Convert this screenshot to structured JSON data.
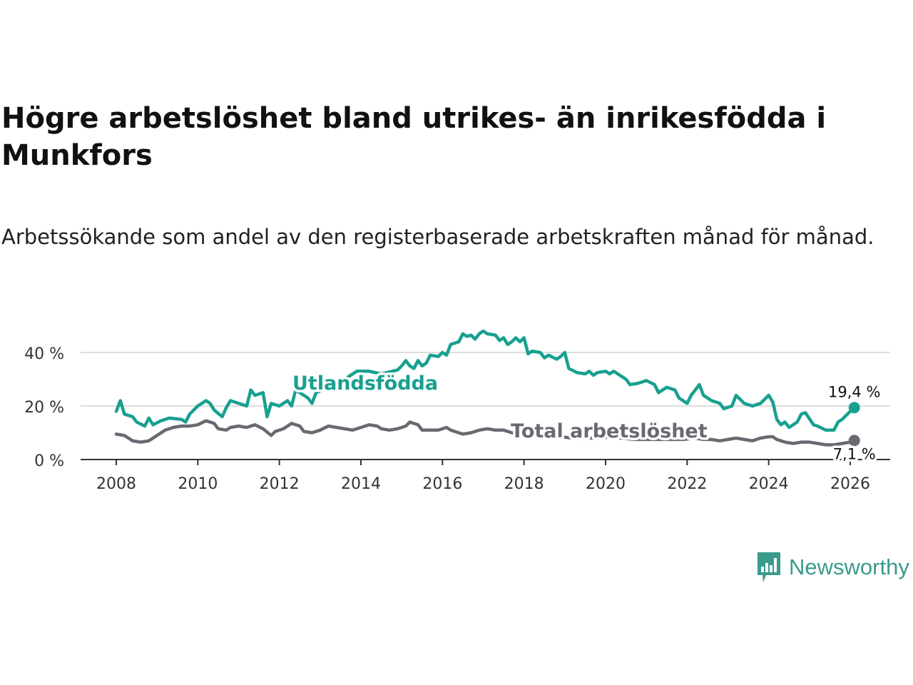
{
  "header": {
    "title": "Högre arbetslöshet bland utrikes- än inrikesfödda i Munkfors",
    "subtitle": "Arbetssökande som andel av den registerbaserade arbetskraften månad för månad."
  },
  "brand": {
    "name": "Newsworthy",
    "color": "#3a9a8c"
  },
  "chart_data": {
    "type": "line",
    "title": "Högre arbetslöshet bland utrikes- än inrikesfödda i Munkfors",
    "xlabel": "",
    "ylabel": "",
    "xlim": [
      2007.7,
      2026.8
    ],
    "ylim": [
      0,
      50
    ],
    "x_ticks": [
      2008,
      2010,
      2012,
      2014,
      2016,
      2018,
      2020,
      2022,
      2024,
      2026
    ],
    "x_tick_labels": [
      "2008",
      "2010",
      "2012",
      "2014",
      "2016",
      "2018",
      "2020",
      "2022",
      "2024",
      "2026"
    ],
    "y_ticks": [
      0,
      20,
      40
    ],
    "y_tick_labels": [
      "0 %",
      "20 %",
      "40 %"
    ],
    "grid": true,
    "series": [
      {
        "name": "Utlandsfödda",
        "color": "#18a08f",
        "label": "Utlandsfödda",
        "end_label": "19,4 %",
        "points": [
          [
            2008.0,
            18.0
          ],
          [
            2008.1,
            22.0
          ],
          [
            2008.2,
            17.0
          ],
          [
            2008.4,
            16.0
          ],
          [
            2008.5,
            14.0
          ],
          [
            2008.7,
            12.5
          ],
          [
            2008.8,
            15.5
          ],
          [
            2008.9,
            13.0
          ],
          [
            2009.1,
            14.5
          ],
          [
            2009.3,
            15.5
          ],
          [
            2009.6,
            15.0
          ],
          [
            2009.7,
            14.0
          ],
          [
            2009.8,
            17.0
          ],
          [
            2010.0,
            20.0
          ],
          [
            2010.2,
            22.0
          ],
          [
            2010.3,
            21.0
          ],
          [
            2010.4,
            18.5
          ],
          [
            2010.6,
            16.0
          ],
          [
            2010.7,
            19.5
          ],
          [
            2010.8,
            22.0
          ],
          [
            2011.0,
            21.0
          ],
          [
            2011.2,
            20.0
          ],
          [
            2011.3,
            26.0
          ],
          [
            2011.4,
            24.0
          ],
          [
            2011.6,
            25.0
          ],
          [
            2011.7,
            16.0
          ],
          [
            2011.8,
            21.0
          ],
          [
            2012.0,
            20.0
          ],
          [
            2012.2,
            22.0
          ],
          [
            2012.3,
            20.0
          ],
          [
            2012.4,
            26.0
          ],
          [
            2012.6,
            24.0
          ],
          [
            2012.7,
            23.0
          ],
          [
            2012.8,
            21.0
          ],
          [
            2012.9,
            25.0
          ],
          [
            2013.2,
            27.0
          ],
          [
            2013.4,
            28.0
          ],
          [
            2013.6,
            30.0
          ],
          [
            2013.9,
            33.0
          ],
          [
            2014.2,
            33.0
          ],
          [
            2014.5,
            32.0
          ],
          [
            2014.9,
            33.5
          ],
          [
            2015.0,
            35.0
          ],
          [
            2015.1,
            37.0
          ],
          [
            2015.2,
            35.0
          ],
          [
            2015.3,
            34.0
          ],
          [
            2015.4,
            37.0
          ],
          [
            2015.5,
            35.0
          ],
          [
            2015.6,
            36.0
          ],
          [
            2015.7,
            39.0
          ],
          [
            2015.9,
            38.5
          ],
          [
            2016.0,
            40.0
          ],
          [
            2016.1,
            39.0
          ],
          [
            2016.2,
            43.0
          ],
          [
            2016.4,
            44.0
          ],
          [
            2016.5,
            47.0
          ],
          [
            2016.6,
            46.0
          ],
          [
            2016.7,
            46.5
          ],
          [
            2016.8,
            45.0
          ],
          [
            2016.9,
            47.0
          ],
          [
            2017.0,
            48.0
          ],
          [
            2017.1,
            47.0
          ],
          [
            2017.3,
            46.5
          ],
          [
            2017.4,
            44.5
          ],
          [
            2017.5,
            45.5
          ],
          [
            2017.6,
            43.0
          ],
          [
            2017.7,
            44.0
          ],
          [
            2017.8,
            45.5
          ],
          [
            2017.9,
            44.0
          ],
          [
            2018.0,
            45.5
          ],
          [
            2018.1,
            39.5
          ],
          [
            2018.2,
            40.5
          ],
          [
            2018.4,
            40.0
          ],
          [
            2018.5,
            38.0
          ],
          [
            2018.6,
            39.0
          ],
          [
            2018.8,
            37.5
          ],
          [
            2018.9,
            38.5
          ],
          [
            2019.0,
            40.0
          ],
          [
            2019.1,
            34.0
          ],
          [
            2019.3,
            32.5
          ],
          [
            2019.5,
            32.0
          ],
          [
            2019.6,
            33.0
          ],
          [
            2019.7,
            31.5
          ],
          [
            2019.8,
            32.5
          ],
          [
            2020.0,
            33.0
          ],
          [
            2020.1,
            32.0
          ],
          [
            2020.2,
            33.0
          ],
          [
            2020.3,
            32.0
          ],
          [
            2020.5,
            30.0
          ],
          [
            2020.6,
            28.0
          ],
          [
            2020.8,
            28.5
          ],
          [
            2021.0,
            29.5
          ],
          [
            2021.2,
            28.0
          ],
          [
            2021.3,
            25.0
          ],
          [
            2021.5,
            27.0
          ],
          [
            2021.7,
            26.0
          ],
          [
            2021.8,
            23.0
          ],
          [
            2022.0,
            21.0
          ],
          [
            2022.1,
            24.0
          ],
          [
            2022.3,
            28.0
          ],
          [
            2022.4,
            24.0
          ],
          [
            2022.6,
            22.0
          ],
          [
            2022.8,
            21.0
          ],
          [
            2022.9,
            19.0
          ],
          [
            2023.1,
            20.0
          ],
          [
            2023.2,
            24.0
          ],
          [
            2023.4,
            21.0
          ],
          [
            2023.6,
            20.0
          ],
          [
            2023.8,
            21.0
          ],
          [
            2024.0,
            24.0
          ],
          [
            2024.1,
            21.5
          ],
          [
            2024.2,
            15.0
          ],
          [
            2024.3,
            13.0
          ],
          [
            2024.4,
            14.0
          ],
          [
            2024.5,
            12.0
          ],
          [
            2024.7,
            14.0
          ],
          [
            2024.8,
            17.0
          ],
          [
            2024.9,
            17.5
          ],
          [
            2025.1,
            13.0
          ],
          [
            2025.2,
            12.5
          ],
          [
            2025.4,
            11.0
          ],
          [
            2025.6,
            11.0
          ],
          [
            2025.7,
            14.0
          ],
          [
            2025.8,
            15.0
          ],
          [
            2025.9,
            16.5
          ],
          [
            2026.0,
            18.0
          ],
          [
            2026.1,
            19.4
          ]
        ]
      },
      {
        "name": "Total arbetslöshet",
        "color": "#6b6871",
        "label": "Total arbetslöshet",
        "end_label": "7,1 %",
        "points": [
          [
            2008.0,
            9.5
          ],
          [
            2008.2,
            9.0
          ],
          [
            2008.3,
            8.0
          ],
          [
            2008.4,
            7.0
          ],
          [
            2008.6,
            6.5
          ],
          [
            2008.8,
            7.0
          ],
          [
            2008.9,
            8.0
          ],
          [
            2009.0,
            9.0
          ],
          [
            2009.2,
            11.0
          ],
          [
            2009.4,
            12.0
          ],
          [
            2009.6,
            12.5
          ],
          [
            2009.8,
            12.5
          ],
          [
            2010.0,
            13.0
          ],
          [
            2010.2,
            14.5
          ],
          [
            2010.4,
            13.5
          ],
          [
            2010.5,
            11.5
          ],
          [
            2010.7,
            11.0
          ],
          [
            2010.8,
            12.0
          ],
          [
            2011.0,
            12.5
          ],
          [
            2011.2,
            12.0
          ],
          [
            2011.4,
            13.0
          ],
          [
            2011.6,
            11.5
          ],
          [
            2011.8,
            9.0
          ],
          [
            2011.9,
            10.5
          ],
          [
            2012.1,
            11.5
          ],
          [
            2012.3,
            13.5
          ],
          [
            2012.5,
            12.5
          ],
          [
            2012.6,
            10.5
          ],
          [
            2012.8,
            10.0
          ],
          [
            2013.0,
            11.0
          ],
          [
            2013.2,
            12.5
          ],
          [
            2013.4,
            12.0
          ],
          [
            2013.6,
            11.5
          ],
          [
            2013.8,
            11.0
          ],
          [
            2014.0,
            12.0
          ],
          [
            2014.2,
            13.0
          ],
          [
            2014.4,
            12.5
          ],
          [
            2014.5,
            11.5
          ],
          [
            2014.7,
            11.0
          ],
          [
            2014.9,
            11.5
          ],
          [
            2015.1,
            12.5
          ],
          [
            2015.2,
            14.0
          ],
          [
            2015.4,
            13.0
          ],
          [
            2015.5,
            11.0
          ],
          [
            2015.7,
            11.0
          ],
          [
            2015.9,
            11.0
          ],
          [
            2016.1,
            12.0
          ],
          [
            2016.2,
            11.0
          ],
          [
            2016.3,
            10.5
          ],
          [
            2016.5,
            9.5
          ],
          [
            2016.7,
            10.0
          ],
          [
            2016.9,
            11.0
          ],
          [
            2017.1,
            11.5
          ],
          [
            2017.3,
            11.0
          ],
          [
            2017.5,
            11.0
          ],
          [
            2017.6,
            10.5
          ],
          [
            2017.7,
            10.0
          ],
          [
            2018.0,
            9.5
          ],
          [
            2018.3,
            9.0
          ],
          [
            2018.6,
            8.5
          ],
          [
            2018.9,
            8.5
          ],
          [
            2019.2,
            8.0
          ],
          [
            2019.5,
            8.0
          ],
          [
            2019.8,
            8.0
          ],
          [
            2020.1,
            8.5
          ],
          [
            2020.4,
            8.0
          ],
          [
            2020.7,
            7.5
          ],
          [
            2021.0,
            7.5
          ],
          [
            2021.3,
            7.5
          ],
          [
            2021.6,
            7.5
          ],
          [
            2021.9,
            7.5
          ],
          [
            2022.2,
            8.0
          ],
          [
            2022.4,
            7.5
          ],
          [
            2022.6,
            7.5
          ],
          [
            2022.8,
            7.0
          ],
          [
            2023.0,
            7.5
          ],
          [
            2023.2,
            8.0
          ],
          [
            2023.4,
            7.5
          ],
          [
            2023.6,
            7.0
          ],
          [
            2023.8,
            8.0
          ],
          [
            2024.0,
            8.5
          ],
          [
            2024.1,
            8.5
          ],
          [
            2024.2,
            7.5
          ],
          [
            2024.4,
            6.5
          ],
          [
            2024.6,
            6.0
          ],
          [
            2024.8,
            6.5
          ],
          [
            2025.0,
            6.5
          ],
          [
            2025.2,
            6.0
          ],
          [
            2025.4,
            5.5
          ],
          [
            2025.6,
            5.5
          ],
          [
            2025.8,
            6.0
          ],
          [
            2026.0,
            6.5
          ],
          [
            2026.1,
            7.1
          ]
        ]
      }
    ]
  }
}
